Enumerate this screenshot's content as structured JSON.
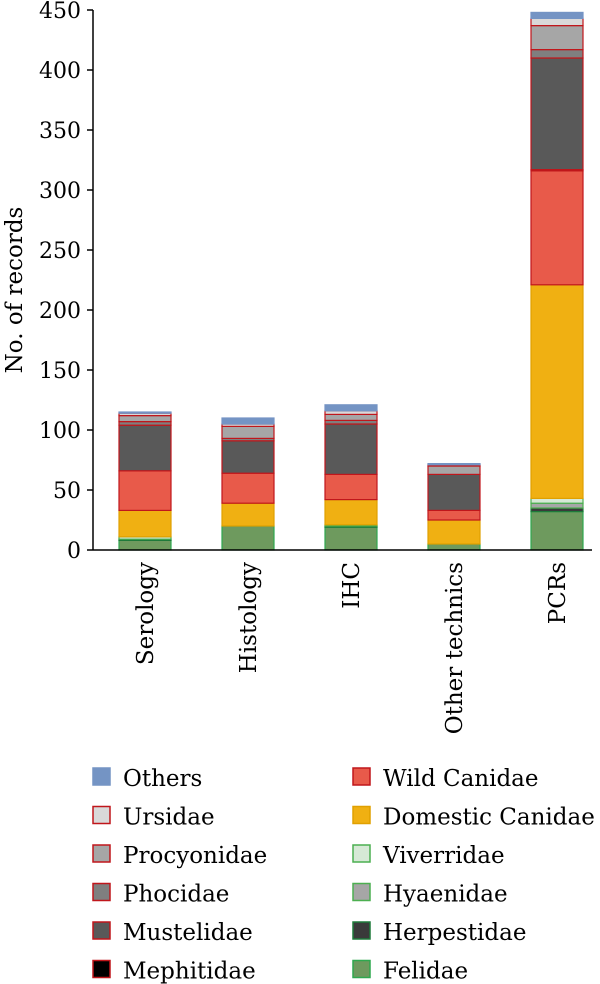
{
  "chart_data": {
    "type": "bar",
    "stacked": true,
    "title": "",
    "xlabel": "",
    "ylabel": "No. of records",
    "ylim": [
      0,
      450
    ],
    "yticks": [
      0,
      50,
      100,
      150,
      200,
      250,
      300,
      350,
      400,
      450
    ],
    "grid": false,
    "legend_position": "bottom",
    "categories": [
      "Serology",
      "Histology",
      "IHC",
      "Other technics",
      "PCRs"
    ],
    "series": [
      {
        "name": "Felidae",
        "color": "#6e9a5e",
        "edge": "#2fa84f",
        "values": [
          8,
          20,
          19,
          5,
          32
        ]
      },
      {
        "name": "Herpestidae",
        "color": "#3a3a3a",
        "edge": "#1e7a3a",
        "values": [
          1,
          0,
          1,
          0,
          3
        ]
      },
      {
        "name": "Hyaenidae",
        "color": "#a6a6a6",
        "edge": "#4caf50",
        "values": [
          0,
          0,
          0,
          0,
          4
        ]
      },
      {
        "name": "Viverridae",
        "color": "#d6e9d6",
        "edge": "#4caf50",
        "values": [
          2,
          0,
          1,
          0,
          4
        ]
      },
      {
        "name": "Domestic Canidae",
        "color": "#f0b012",
        "edge": "#e0a000",
        "values": [
          22,
          19,
          21,
          20,
          178
        ]
      },
      {
        "name": "Wild Canidae",
        "color": "#e85a4a",
        "edge": "#c0161b",
        "values": [
          33,
          25,
          21,
          8,
          95
        ]
      },
      {
        "name": "Mephitidae",
        "color": "#000000",
        "edge": "#c0161b",
        "values": [
          0,
          0,
          0,
          0,
          1
        ]
      },
      {
        "name": "Mustelidae",
        "color": "#595959",
        "edge": "#c0161b",
        "values": [
          38,
          27,
          42,
          30,
          93
        ]
      },
      {
        "name": "Phocidae",
        "color": "#7f7f7f",
        "edge": "#c0161b",
        "values": [
          3,
          2,
          3,
          0,
          7
        ]
      },
      {
        "name": "Procyonidae",
        "color": "#a6a6a6",
        "edge": "#c0161b",
        "values": [
          5,
          10,
          5,
          7,
          20
        ]
      },
      {
        "name": "Ursidae",
        "color": "#d9d9d9",
        "edge": "#c0161b",
        "values": [
          2,
          2,
          3,
          1,
          6
        ]
      },
      {
        "name": "Others",
        "color": "#7494c4",
        "edge": "#7494c4",
        "values": [
          1,
          5,
          5,
          1,
          5
        ]
      }
    ],
    "legend_order": [
      [
        "Others",
        "Wild Canidae"
      ],
      [
        "Ursidae",
        "Domestic Canidae"
      ],
      [
        "Procyonidae",
        "Viverridae"
      ],
      [
        "Phocidae",
        "Hyaenidae"
      ],
      [
        "Mustelidae",
        "Herpestidae"
      ],
      [
        "Mephitidae",
        "Felidae"
      ]
    ]
  }
}
